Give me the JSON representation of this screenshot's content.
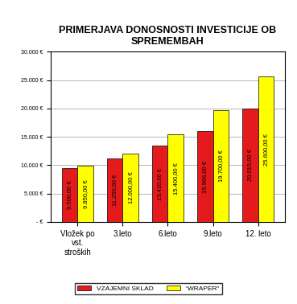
{
  "chart_data": {
    "type": "bar",
    "title": "PRIMERJAVA DONOSNOSTI INVESTICIJE OB SPREMEMBAH",
    "categories": [
      "Vložek po vst. stroških",
      "3.leto",
      "6.leto",
      "9.leto",
      "12. leto"
    ],
    "series": [
      {
        "name": "VZAJEMNI SKLAD",
        "color": "#e41a1c",
        "values": [
          9500,
          11250,
          13410,
          15966,
          20015
        ],
        "value_labels": [
          "9.500,00 €",
          "11.250,00 €",
          "13.410,00 €",
          "15.966,00 €",
          "20.015,00 €"
        ]
      },
      {
        "name": "\"WRAPER\"",
        "color": "#ffff00",
        "values": [
          9850,
          12000,
          15400,
          19700,
          25600
        ],
        "value_labels": [
          "9.850,00 €",
          "12.000,00 €",
          "15.400,00 €",
          "19.700,00 €",
          "25.600,00 €"
        ]
      }
    ],
    "ylim": [
      0,
      30000
    ],
    "yticks": [
      {
        "value": 0,
        "label": "- €"
      },
      {
        "value": 5000,
        "label": "5.000 €"
      },
      {
        "value": 10000,
        "label": "10.000 €"
      },
      {
        "value": 15000,
        "label": "15.000 €"
      },
      {
        "value": 20000,
        "label": "20.000 €"
      },
      {
        "value": 25000,
        "label": "25.000 €"
      },
      {
        "value": 30000,
        "label": "30.000 €"
      }
    ],
    "grid": true,
    "data_labels": true,
    "legend": "lower center"
  }
}
